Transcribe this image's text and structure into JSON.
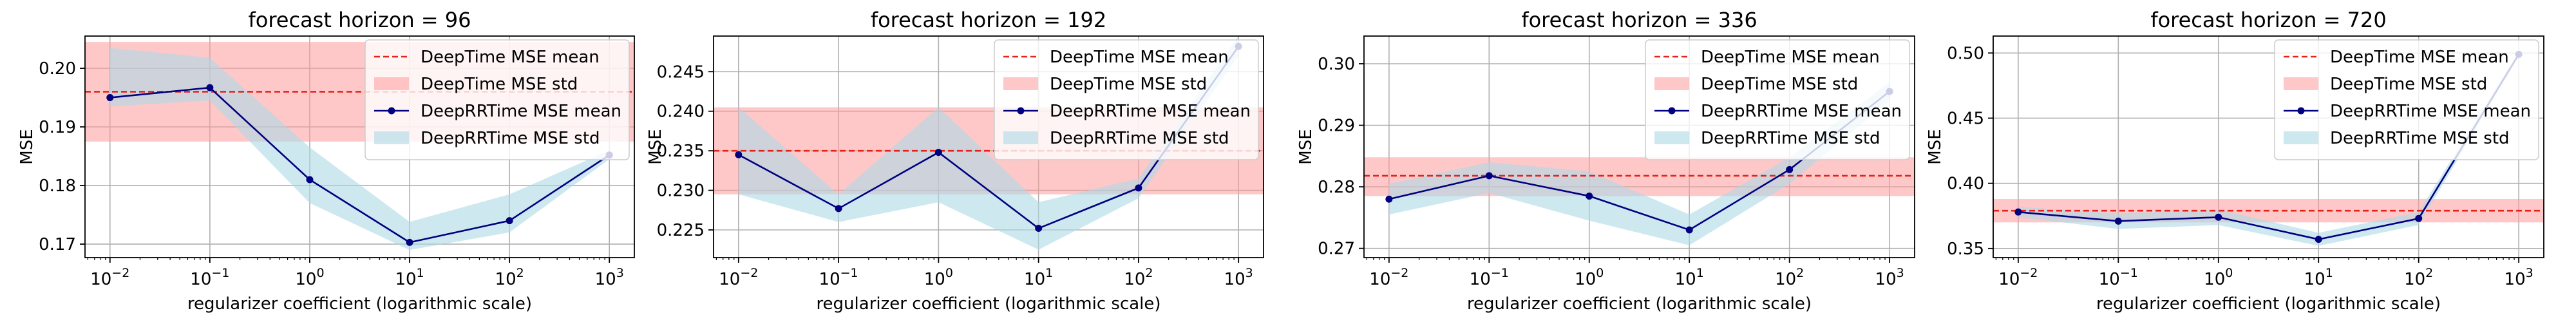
{
  "colors": {
    "deeptime_mean": "#e8221b",
    "deeptime_std": "#ff9a9a",
    "deeprr_mean": "#000080",
    "deeprr_std": "#add8e6",
    "grid": "#b0b0b0",
    "axis": "#000000"
  },
  "chart_data": [
    {
      "type": "line",
      "title": "forecast horizon = 96",
      "xlabel": "regularizer coefficient (logarithmic scale)",
      "ylabel": "MSE",
      "x_scale": "log",
      "x": [
        0.01,
        0.1,
        1,
        10,
        100,
        1000
      ],
      "xticks": [
        {
          "base": "10",
          "exp": "−2"
        },
        {
          "base": "10",
          "exp": "−1"
        },
        {
          "base": "10",
          "exp": "0"
        },
        {
          "base": "10",
          "exp": "1"
        },
        {
          "base": "10",
          "exp": "2"
        },
        {
          "base": "10",
          "exp": "3"
        }
      ],
      "ylim": [
        0.1677,
        0.2055
      ],
      "yticks": [
        0.17,
        0.18,
        0.19,
        0.2
      ],
      "ytick_labels": [
        "0.17",
        "0.18",
        "0.19",
        "0.20"
      ],
      "grid": true,
      "legend_position": "upper right",
      "deeptime": {
        "mean": 0.196,
        "std_low": 0.1875,
        "std_high": 0.2045
      },
      "deeprr": {
        "mean": [
          0.195,
          0.1967,
          0.181,
          0.1703,
          0.174,
          0.1852
        ],
        "std_low": [
          0.1935,
          0.1945,
          0.177,
          0.169,
          0.172,
          0.1845
        ],
        "std_high": [
          0.2035,
          0.2018,
          0.1865,
          0.1738,
          0.1785,
          0.186
        ]
      },
      "legend": [
        {
          "key": "deeptime_mean",
          "label": "DeepTime MSE mean"
        },
        {
          "key": "deeptime_std",
          "label": "DeepTime MSE std"
        },
        {
          "key": "deeprr_mean",
          "label": "DeepRRTime MSE mean"
        },
        {
          "key": "deeprr_std",
          "label": "DeepRRTime MSE std"
        }
      ]
    },
    {
      "type": "line",
      "title": "forecast horizon = 192",
      "xlabel": "regularizer coefficient (logarithmic scale)",
      "ylabel": "MSE",
      "x_scale": "log",
      "x": [
        0.01,
        0.1,
        1,
        10,
        100,
        1000
      ],
      "xticks": [
        {
          "base": "10",
          "exp": "−2"
        },
        {
          "base": "10",
          "exp": "−1"
        },
        {
          "base": "10",
          "exp": "0"
        },
        {
          "base": "10",
          "exp": "1"
        },
        {
          "base": "10",
          "exp": "2"
        },
        {
          "base": "10",
          "exp": "3"
        }
      ],
      "ylim": [
        0.2215,
        0.2495
      ],
      "yticks": [
        0.225,
        0.23,
        0.235,
        0.24,
        0.245
      ],
      "ytick_labels": [
        "0.225",
        "0.230",
        "0.235",
        "0.240",
        "0.245"
      ],
      "grid": true,
      "legend_position": "upper right",
      "deeptime": {
        "mean": 0.235,
        "std_low": 0.2295,
        "std_high": 0.2405
      },
      "deeprr": {
        "mean": [
          0.2345,
          0.2277,
          0.2348,
          0.2252,
          0.2303,
          0.2482
        ],
        "std_low": [
          0.2295,
          0.226,
          0.2285,
          0.2225,
          0.229,
          0.247
        ],
        "std_high": [
          0.2405,
          0.2295,
          0.2405,
          0.2285,
          0.2315,
          0.2495
        ]
      },
      "legend": [
        {
          "key": "deeptime_mean",
          "label": "DeepTime MSE mean"
        },
        {
          "key": "deeptime_std",
          "label": "DeepTime MSE std"
        },
        {
          "key": "deeprr_mean",
          "label": "DeepRRTime MSE mean"
        },
        {
          "key": "deeprr_std",
          "label": "DeepRRTime MSE std"
        }
      ]
    },
    {
      "type": "line",
      "title": "forecast horizon = 336",
      "xlabel": "regularizer coefficient (logarithmic scale)",
      "ylabel": "MSE",
      "x_scale": "log",
      "x": [
        0.01,
        0.1,
        1,
        10,
        100,
        1000
      ],
      "xticks": [
        {
          "base": "10",
          "exp": "−2"
        },
        {
          "base": "10",
          "exp": "−1"
        },
        {
          "base": "10",
          "exp": "0"
        },
        {
          "base": "10",
          "exp": "1"
        },
        {
          "base": "10",
          "exp": "2"
        },
        {
          "base": "10",
          "exp": "3"
        }
      ],
      "ylim": [
        0.2685,
        0.3045
      ],
      "yticks": [
        0.27,
        0.28,
        0.29,
        0.3
      ],
      "ytick_labels": [
        "0.27",
        "0.28",
        "0.29",
        "0.30"
      ],
      "grid": true,
      "legend_position": "upper right",
      "deeptime": {
        "mean": 0.2818,
        "std_low": 0.2785,
        "std_high": 0.2848
      },
      "deeprr": {
        "mean": [
          0.278,
          0.2818,
          0.2785,
          0.273,
          0.2828,
          0.2955
        ],
        "std_low": [
          0.2755,
          0.279,
          0.2745,
          0.2705,
          0.2805,
          0.294
        ],
        "std_high": [
          0.2805,
          0.284,
          0.2825,
          0.2755,
          0.2848,
          0.297
        ]
      },
      "legend": [
        {
          "key": "deeptime_mean",
          "label": "DeepTime MSE mean"
        },
        {
          "key": "deeptime_std",
          "label": "DeepTime MSE std"
        },
        {
          "key": "deeprr_mean",
          "label": "DeepRRTime MSE mean"
        },
        {
          "key": "deeprr_std",
          "label": "DeepRRTime MSE std"
        }
      ]
    },
    {
      "type": "line",
      "title": "forecast horizon = 720",
      "xlabel": "regularizer coefficient (logarithmic scale)",
      "ylabel": "MSE",
      "x_scale": "log",
      "x": [
        0.01,
        0.1,
        1,
        10,
        100,
        1000
      ],
      "xticks": [
        {
          "base": "10",
          "exp": "−2"
        },
        {
          "base": "10",
          "exp": "−1"
        },
        {
          "base": "10",
          "exp": "0"
        },
        {
          "base": "10",
          "exp": "1"
        },
        {
          "base": "10",
          "exp": "2"
        },
        {
          "base": "10",
          "exp": "3"
        }
      ],
      "ylim": [
        0.343,
        0.513
      ],
      "yticks": [
        0.35,
        0.4,
        0.45,
        0.5
      ],
      "ytick_labels": [
        "0.35",
        "0.40",
        "0.45",
        "0.50"
      ],
      "grid": true,
      "legend_position": "upper right",
      "deeptime": {
        "mean": 0.379,
        "std_low": 0.37,
        "std_high": 0.388
      },
      "deeprr": {
        "mean": [
          0.378,
          0.371,
          0.374,
          0.357,
          0.373,
          0.499
        ],
        "std_low": [
          0.374,
          0.365,
          0.368,
          0.352,
          0.368,
          0.497
        ],
        "std_high": [
          0.382,
          0.377,
          0.38,
          0.362,
          0.378,
          0.501
        ]
      },
      "legend": [
        {
          "key": "deeptime_mean",
          "label": "DeepTime MSE mean"
        },
        {
          "key": "deeptime_std",
          "label": "DeepTime MSE std"
        },
        {
          "key": "deeprr_mean",
          "label": "DeepRRTime MSE mean"
        },
        {
          "key": "deeprr_std",
          "label": "DeepRRTime MSE std"
        }
      ]
    }
  ]
}
